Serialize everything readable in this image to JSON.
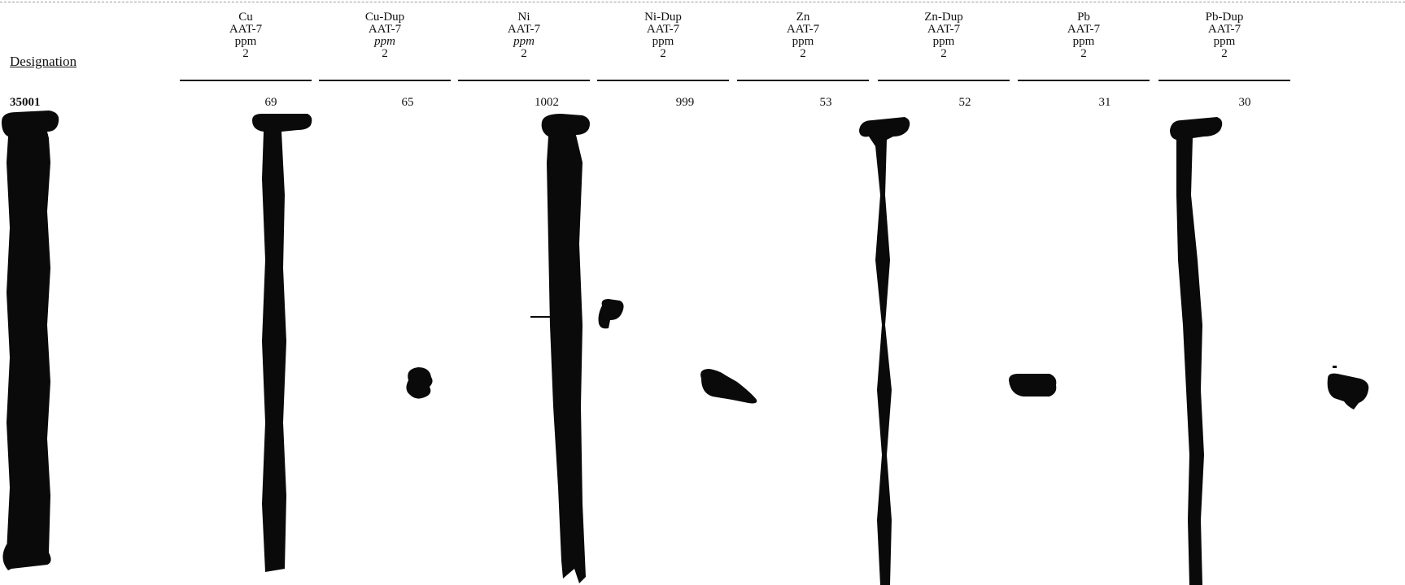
{
  "table": {
    "designation_header": "Designation",
    "columns": [
      {
        "element": "Cu",
        "method": "AAT-7",
        "unit": "ppm",
        "detection_limit": "2",
        "unit_italic": false
      },
      {
        "element": "Cu-Dup",
        "method": "AAT-7",
        "unit": "ppm",
        "detection_limit": "2",
        "unit_italic": true
      },
      {
        "element": "Ni",
        "method": "AAT-7",
        "unit": "ppm",
        "detection_limit": "2",
        "unit_italic": true
      },
      {
        "element": "Ni-Dup",
        "method": "AAT-7",
        "unit": "ppm",
        "detection_limit": "2",
        "unit_italic": false
      },
      {
        "element": "Zn",
        "method": "AAT-7",
        "unit": "ppm",
        "detection_limit": "2",
        "unit_italic": false
      },
      {
        "element": "Zn-Dup",
        "method": "AAT-7",
        "unit": "ppm",
        "detection_limit": "2",
        "unit_italic": false
      },
      {
        "element": "Pb",
        "method": "AAT-7",
        "unit": "ppm",
        "detection_limit": "2",
        "unit_italic": false
      },
      {
        "element": "Pb-Dup",
        "method": "AAT-7",
        "unit": "ppm",
        "detection_limit": "2",
        "unit_italic": false
      }
    ],
    "rows": [
      {
        "designation": "35001",
        "values": [
          "69",
          "65",
          "1002",
          "999",
          "53",
          "52",
          "31",
          "30"
        ]
      }
    ]
  },
  "colors": {
    "ink": "#111111",
    "marker": "#0a0a0a"
  }
}
